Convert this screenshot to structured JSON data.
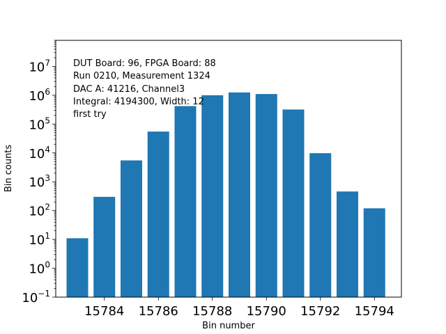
{
  "chart_data": {
    "type": "bar",
    "xlabel": "Bin number",
    "ylabel": "Bin counts",
    "yscale": "log",
    "ylim": [
      0.1,
      80000000
    ],
    "xlim": [
      15782.2,
      15795.0
    ],
    "grid": false,
    "bar_color": "#1f77b4",
    "x": [
      15783,
      15784,
      15785,
      15786,
      15787,
      15788,
      15789,
      15790,
      15791,
      15792,
      15793,
      15794
    ],
    "values": [
      11,
      300,
      5500,
      55000,
      420000,
      1000000,
      1250000,
      1100000,
      320000,
      9800,
      460,
      120
    ],
    "xticks": [
      15784,
      15786,
      15788,
      15790,
      15792,
      15794
    ],
    "yticks": [
      {
        "exp": 7,
        "base": "10",
        "sup": "7"
      },
      {
        "exp": 6,
        "base": "10",
        "sup": "6"
      },
      {
        "exp": 5,
        "base": "10",
        "sup": "5"
      },
      {
        "exp": 4,
        "base": "10",
        "sup": "4"
      },
      {
        "exp": 3,
        "base": "10",
        "sup": "3"
      },
      {
        "exp": 2,
        "base": "10",
        "sup": "2"
      },
      {
        "exp": 1,
        "base": "10",
        "sup": "1"
      },
      {
        "exp": 0,
        "base": "10",
        "sup": "0"
      },
      {
        "exp": -1,
        "base": "10",
        "sup": "−1"
      }
    ],
    "annotation_lines": [
      "DUT Board: 96, FPGA Board: 88",
      "Run 0210, Measurement 1324",
      "DAC A: 41216, Channel3",
      "Integral: 4194300, Width: 12",
      "first try"
    ]
  }
}
